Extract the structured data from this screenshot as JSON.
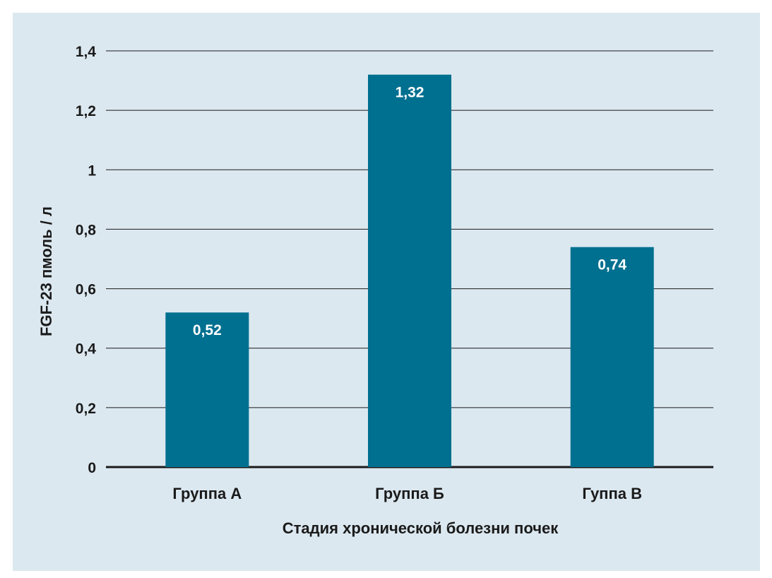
{
  "colors": {
    "background": "#dce8f0",
    "bar": "#007090",
    "grid": "#1a1a1a",
    "text": "#1a1a1a",
    "data_label": "#ffffff"
  },
  "chart_data": {
    "type": "bar",
    "categories": [
      "Группа А",
      "Группа Б",
      "Гуппа В"
    ],
    "values": [
      0.52,
      1.32,
      0.74
    ],
    "value_labels": [
      "0,52",
      "1,32",
      "0,74"
    ],
    "ylabel": "FGF-23 пмоль / л",
    "xlabel": "Стадия хронической болезни почек",
    "ylim": [
      0,
      1.4
    ],
    "yticks": [
      0,
      0.2,
      0.4,
      0.6,
      0.8,
      1,
      1.2,
      1.4
    ],
    "ytick_labels": [
      "0",
      "0,2",
      "0,4",
      "0,6",
      "0,8",
      "1",
      "1,2",
      "1,4"
    ],
    "grid": true,
    "legend": "none"
  }
}
